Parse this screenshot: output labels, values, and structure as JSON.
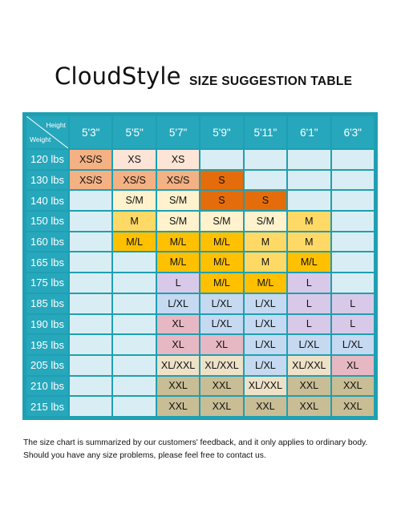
{
  "header": {
    "brand": "CloudStyle",
    "subtitle": "SIZE SUGGESTION TABLE"
  },
  "table": {
    "corner_height_label": "Height",
    "corner_weight_label": "Weight",
    "columns": [
      "5'3\"",
      "5'5\"",
      "5'7\"",
      "5'9\"",
      "5'11\"",
      "6'1\"",
      "6'3\""
    ],
    "rows": [
      {
        "weight": "120 lbs",
        "cells": [
          {
            "text": "XS/S",
            "color": "#f4b183"
          },
          {
            "text": "XS",
            "color": "#fce4d6"
          },
          {
            "text": "XS",
            "color": "#fce4d6"
          },
          {
            "text": "",
            "color": ""
          },
          {
            "text": "",
            "color": ""
          },
          {
            "text": "",
            "color": ""
          },
          {
            "text": "",
            "color": ""
          }
        ]
      },
      {
        "weight": "130 lbs",
        "cells": [
          {
            "text": "XS/S",
            "color": "#f4b183"
          },
          {
            "text": "XS/S",
            "color": "#f4b183"
          },
          {
            "text": "XS/S",
            "color": "#f4b183"
          },
          {
            "text": "S",
            "color": "#e46c0a"
          },
          {
            "text": "",
            "color": ""
          },
          {
            "text": "",
            "color": ""
          },
          {
            "text": "",
            "color": ""
          }
        ]
      },
      {
        "weight": "140 lbs",
        "cells": [
          {
            "text": "",
            "color": ""
          },
          {
            "text": "S/M",
            "color": "#fff2cc"
          },
          {
            "text": "S/M",
            "color": "#fff2cc"
          },
          {
            "text": "S",
            "color": "#e46c0a"
          },
          {
            "text": "S",
            "color": "#e46c0a"
          },
          {
            "text": "",
            "color": ""
          },
          {
            "text": "",
            "color": ""
          }
        ]
      },
      {
        "weight": "150 lbs",
        "cells": [
          {
            "text": "",
            "color": ""
          },
          {
            "text": "M",
            "color": "#ffd966"
          },
          {
            "text": "S/M",
            "color": "#fff2cc"
          },
          {
            "text": "S/M",
            "color": "#fff2cc"
          },
          {
            "text": "S/M",
            "color": "#fff2cc"
          },
          {
            "text": "M",
            "color": "#ffd966"
          },
          {
            "text": "",
            "color": ""
          }
        ]
      },
      {
        "weight": "160 lbs",
        "cells": [
          {
            "text": "",
            "color": ""
          },
          {
            "text": "M/L",
            "color": "#ffc000"
          },
          {
            "text": "M/L",
            "color": "#ffc000"
          },
          {
            "text": "M/L",
            "color": "#ffc000"
          },
          {
            "text": "M",
            "color": "#ffd966"
          },
          {
            "text": "M",
            "color": "#ffd966"
          },
          {
            "text": "",
            "color": ""
          }
        ]
      },
      {
        "weight": "165 lbs",
        "cells": [
          {
            "text": "",
            "color": ""
          },
          {
            "text": "",
            "color": ""
          },
          {
            "text": "M/L",
            "color": "#ffc000"
          },
          {
            "text": "M/L",
            "color": "#ffc000"
          },
          {
            "text": "M",
            "color": "#ffd966"
          },
          {
            "text": "M/L",
            "color": "#ffc000"
          },
          {
            "text": "",
            "color": ""
          }
        ]
      },
      {
        "weight": "175 lbs",
        "cells": [
          {
            "text": "",
            "color": ""
          },
          {
            "text": "",
            "color": ""
          },
          {
            "text": "L",
            "color": "#d9c9e8"
          },
          {
            "text": "M/L",
            "color": "#ffc000"
          },
          {
            "text": "M/L",
            "color": "#ffc000"
          },
          {
            "text": "L",
            "color": "#d9c9e8"
          },
          {
            "text": "",
            "color": ""
          }
        ]
      },
      {
        "weight": "185 lbs",
        "cells": [
          {
            "text": "",
            "color": ""
          },
          {
            "text": "",
            "color": ""
          },
          {
            "text": "L/XL",
            "color": "#c5d9f1"
          },
          {
            "text": "L/XL",
            "color": "#c5d9f1"
          },
          {
            "text": "L/XL",
            "color": "#c5d9f1"
          },
          {
            "text": "L",
            "color": "#d9c9e8"
          },
          {
            "text": "L",
            "color": "#d9c9e8"
          }
        ]
      },
      {
        "weight": "190 lbs",
        "cells": [
          {
            "text": "",
            "color": ""
          },
          {
            "text": "",
            "color": ""
          },
          {
            "text": "XL",
            "color": "#e6b8c3"
          },
          {
            "text": "L/XL",
            "color": "#c5d9f1"
          },
          {
            "text": "L/XL",
            "color": "#c5d9f1"
          },
          {
            "text": "L",
            "color": "#d9c9e8"
          },
          {
            "text": "L",
            "color": "#d9c9e8"
          }
        ]
      },
      {
        "weight": "195 lbs",
        "cells": [
          {
            "text": "",
            "color": ""
          },
          {
            "text": "",
            "color": ""
          },
          {
            "text": "XL",
            "color": "#e6b8c3"
          },
          {
            "text": "XL",
            "color": "#e6b8c3"
          },
          {
            "text": "L/XL",
            "color": "#c5d9f1"
          },
          {
            "text": "L/XL",
            "color": "#c5d9f1"
          },
          {
            "text": "L/XL",
            "color": "#c5d9f1"
          }
        ]
      },
      {
        "weight": "205 lbs",
        "cells": [
          {
            "text": "",
            "color": ""
          },
          {
            "text": "",
            "color": ""
          },
          {
            "text": "XL/XXL",
            "color": "#ede1c8"
          },
          {
            "text": "XL/XXL",
            "color": "#ede1c8"
          },
          {
            "text": "L/XL",
            "color": "#c5d9f1"
          },
          {
            "text": "XL/XXL",
            "color": "#ede1c8"
          },
          {
            "text": "XL",
            "color": "#e6b8c3"
          }
        ]
      },
      {
        "weight": "210 lbs",
        "cells": [
          {
            "text": "",
            "color": ""
          },
          {
            "text": "",
            "color": ""
          },
          {
            "text": "XXL",
            "color": "#c9bd95"
          },
          {
            "text": "XXL",
            "color": "#c9bd95"
          },
          {
            "text": "XL/XXL",
            "color": "#ede1c8"
          },
          {
            "text": "XXL",
            "color": "#c9bd95"
          },
          {
            "text": "XXL",
            "color": "#c9bd95"
          }
        ]
      },
      {
        "weight": "215 lbs",
        "cells": [
          {
            "text": "",
            "color": ""
          },
          {
            "text": "",
            "color": ""
          },
          {
            "text": "XXL",
            "color": "#c9bd95"
          },
          {
            "text": "XXL",
            "color": "#c9bd95"
          },
          {
            "text": "XXL",
            "color": "#c9bd95"
          },
          {
            "text": "XXL",
            "color": "#c9bd95"
          },
          {
            "text": "XXL",
            "color": "#c9bd95"
          }
        ]
      }
    ]
  },
  "footer": {
    "line1": "The size chart is summarized by our customers' feedback, and it only applies to ordinary body.",
    "line2": "Should you have any size problems, please feel free to contact us."
  }
}
